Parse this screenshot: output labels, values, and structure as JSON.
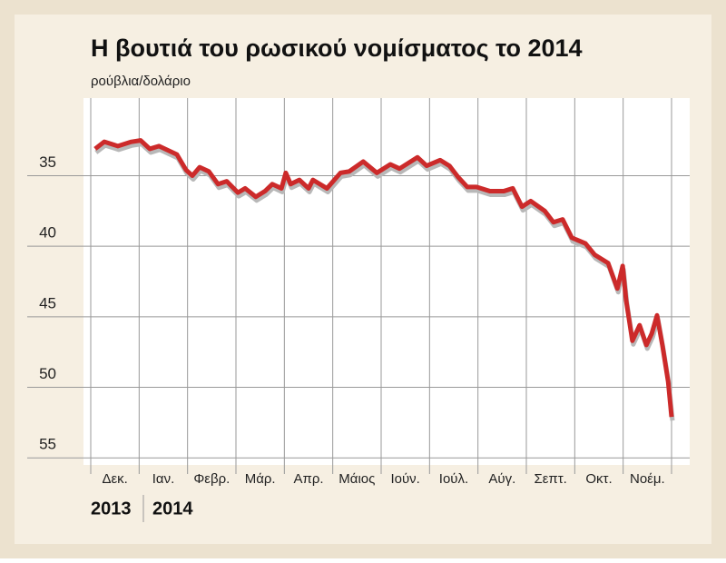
{
  "chart_data": {
    "type": "line",
    "title": "Η βουτιά του ρωσικού νομίσματος το 2014",
    "subtitle": "ρούβλια/δολάριο",
    "categories": [
      "Δεκ.",
      "Ιαν.",
      "Φεβρ.",
      "Μάρ.",
      "Απρ.",
      "Μάιος",
      "Ιούν.",
      "Ιούλ.",
      "Αύγ.",
      "Σεπτ.",
      "Οκτ.",
      "Νοέμ."
    ],
    "years": [
      "2013",
      "2014"
    ],
    "x": [
      0.09,
      0.28,
      0.56,
      0.84,
      1.03,
      1.22,
      1.41,
      1.78,
      1.97,
      2.1,
      2.25,
      2.44,
      2.63,
      2.81,
      3.04,
      3.19,
      3.41,
      3.6,
      3.75,
      3.94,
      4.03,
      4.13,
      4.31,
      4.5,
      4.59,
      4.88,
      5.16,
      5.34,
      5.63,
      5.91,
      6.19,
      6.38,
      6.75,
      6.94,
      7.22,
      7.41,
      7.59,
      7.78,
      7.97,
      8.25,
      8.53,
      8.72,
      8.91,
      9.09,
      9.38,
      9.56,
      9.75,
      9.94,
      10.22,
      10.41,
      10.69,
      10.88,
      10.99,
      11.06,
      11.19,
      11.34,
      11.48,
      11.59,
      11.7,
      11.81,
      11.93,
      12.0
    ],
    "series": [
      {
        "name": "ρούβλια/δολάριο",
        "color": "#cc2a2a",
        "values": [
          33.1,
          32.6,
          32.9,
          32.6,
          32.5,
          33.1,
          32.9,
          33.5,
          34.6,
          35.0,
          34.4,
          34.7,
          35.6,
          35.4,
          36.2,
          35.9,
          36.5,
          36.1,
          35.6,
          35.9,
          34.8,
          35.6,
          35.3,
          35.9,
          35.3,
          35.9,
          34.8,
          34.7,
          34.0,
          34.8,
          34.2,
          34.5,
          33.7,
          34.3,
          33.9,
          34.3,
          35.1,
          35.8,
          35.8,
          36.1,
          36.1,
          35.9,
          37.2,
          36.8,
          37.5,
          38.3,
          38.1,
          39.4,
          39.8,
          40.6,
          41.2,
          43.0,
          41.4,
          43.8,
          46.7,
          45.6,
          47.0,
          46.2,
          44.9,
          47.0,
          49.6,
          52.1
        ]
      }
    ],
    "xlim": [
      0,
      12
    ],
    "xticks": [
      0,
      1,
      2,
      3,
      4,
      5,
      6,
      7,
      8,
      9,
      10,
      11,
      12
    ],
    "ylim": [
      55.5,
      29.5
    ],
    "yticks": [
      35,
      40,
      45,
      50,
      55
    ],
    "grid": true
  }
}
